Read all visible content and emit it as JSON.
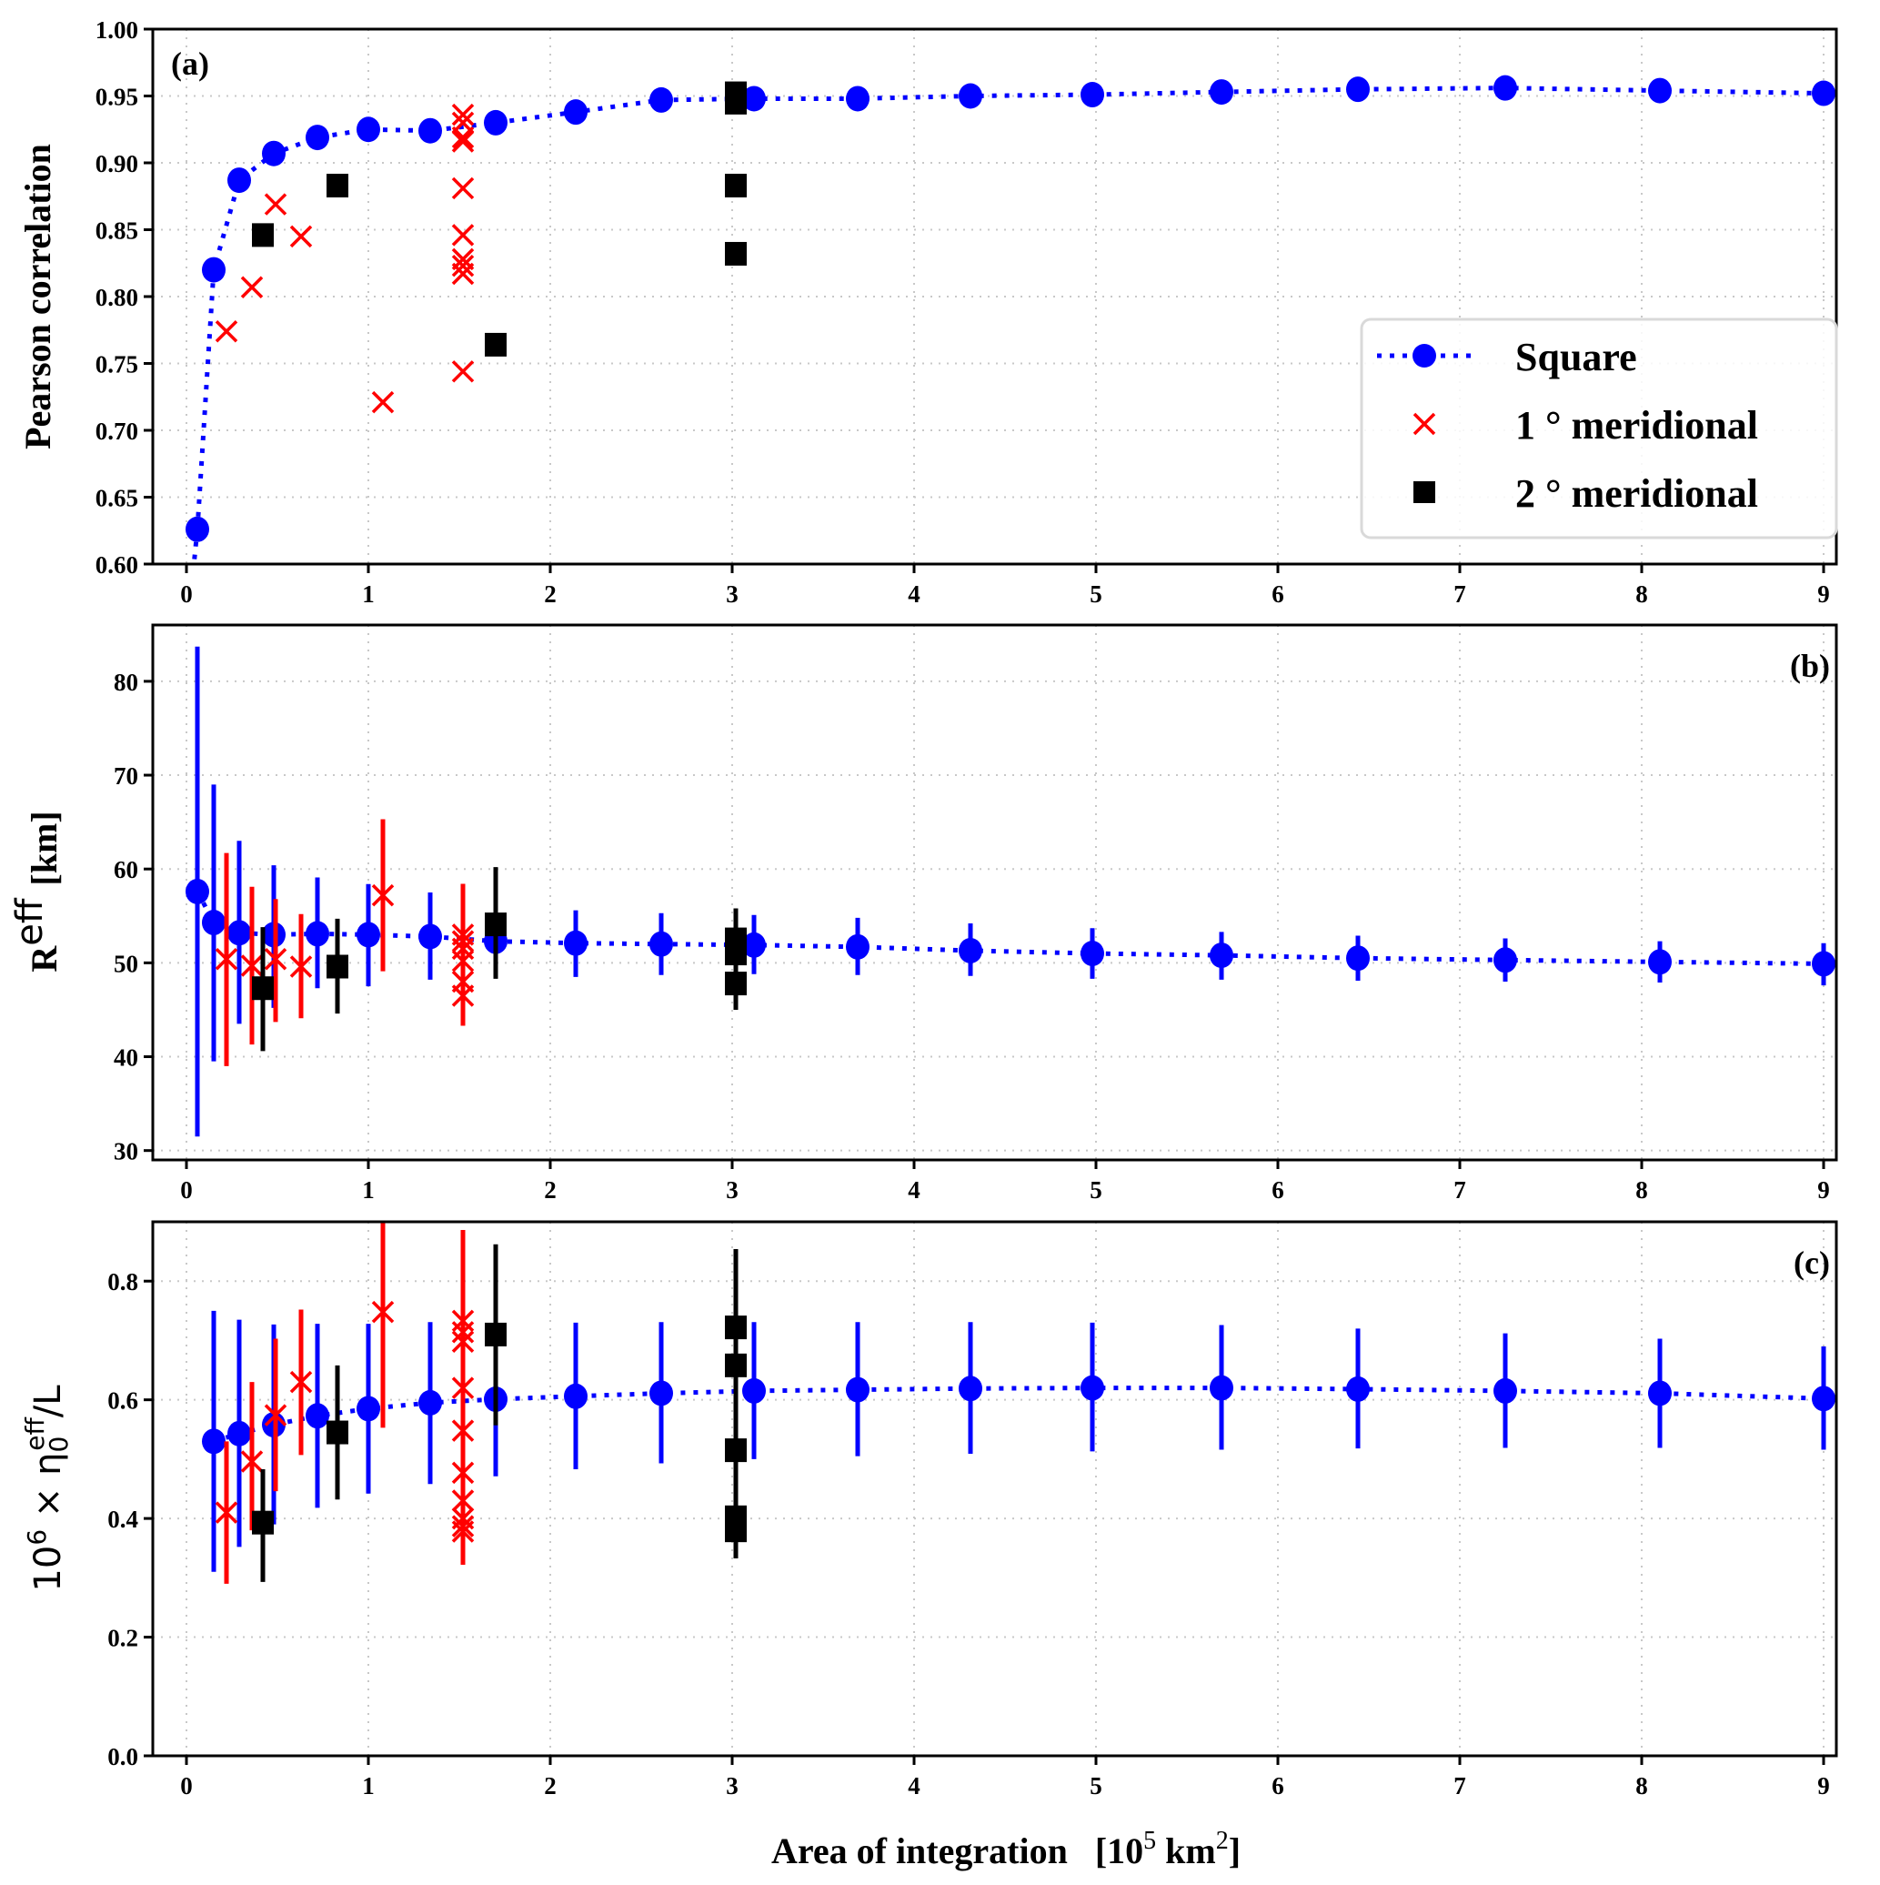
{
  "colors": {
    "square": "#0000ff",
    "meridional_1deg": "#ff0000",
    "meridional_2deg": "#000000",
    "grid": "#c8c8c8",
    "legend_border": "#d9d9d9"
  },
  "chart_data": [
    {
      "id": "a",
      "type": "scatter",
      "panel_label": "(a)",
      "title": "",
      "xlabel": "",
      "ylabel": "Pearson correlation",
      "xlim": [
        -0.2,
        9.1
      ],
      "ylim": [
        0.6,
        1.0
      ],
      "xticks": [
        0,
        1,
        2,
        3,
        4,
        5,
        6,
        7,
        8,
        9
      ],
      "yticks": [
        0.6,
        0.65,
        0.7,
        0.75,
        0.8,
        0.85,
        0.9,
        0.95,
        1.0
      ],
      "ytick_labels": [
        "0.60",
        "0.65",
        "0.70",
        "0.75",
        "0.80",
        "0.85",
        "0.90",
        "0.95",
        "1.00"
      ],
      "grid": true,
      "legend": {
        "placement": "center-right",
        "entries": [
          {
            "label": "Square",
            "marker": "circle",
            "line": "dotted",
            "series": "square"
          },
          {
            "label": "1 °  meridional",
            "marker": "x",
            "series": "meridional_1deg"
          },
          {
            "label": "2 °  meridional",
            "marker": "square",
            "series": "meridional_2deg"
          }
        ]
      },
      "series": [
        {
          "name": "Square",
          "key": "square",
          "marker": "circle",
          "line": "dotted",
          "x": [
            0.06,
            0.15,
            0.29,
            0.48,
            0.72,
            1.0,
            1.34,
            1.7,
            2.14,
            2.61,
            3.12,
            3.69,
            4.31,
            4.98,
            5.69,
            6.44,
            7.25,
            8.1,
            9.0
          ],
          "y": [
            0.626,
            0.82,
            0.887,
            0.907,
            0.919,
            0.925,
            0.924,
            0.93,
            0.938,
            0.947,
            0.948,
            0.948,
            0.95,
            0.951,
            0.953,
            0.955,
            0.956,
            0.954,
            0.952
          ]
        },
        {
          "name": "1 ° meridional",
          "key": "meridional_1deg",
          "marker": "x",
          "x": [
            0.22,
            0.36,
            0.49,
            0.63,
            1.08,
            1.52,
            1.52,
            1.52,
            1.52,
            1.52,
            1.52,
            1.52,
            1.52,
            1.52,
            1.52
          ],
          "y": [
            0.774,
            0.807,
            0.869,
            0.845,
            0.721,
            0.936,
            0.93,
            0.919,
            0.916,
            0.881,
            0.846,
            0.828,
            0.823,
            0.817,
            0.744
          ]
        },
        {
          "name": "2 ° meridional",
          "key": "meridional_2deg",
          "marker": "square",
          "x": [
            0.42,
            0.83,
            1.7,
            3.02,
            3.02,
            3.02,
            3.02
          ],
          "y": [
            0.846,
            0.883,
            0.764,
            0.952,
            0.945,
            0.883,
            0.832
          ]
        }
      ]
    },
    {
      "id": "b",
      "type": "scatter",
      "panel_label": "(b)",
      "title": "",
      "xlabel": "",
      "ylabel_main": "R",
      "ylabel_sup": "eff",
      "ylabel_unit": "[km]",
      "xlim": [
        -0.2,
        9.1
      ],
      "ylim": [
        29,
        86
      ],
      "xticks": [
        0,
        1,
        2,
        3,
        4,
        5,
        6,
        7,
        8,
        9
      ],
      "yticks": [
        30,
        40,
        50,
        60,
        70,
        80
      ],
      "ytick_labels": [
        "30",
        "40",
        "50",
        "60",
        "70",
        "80"
      ],
      "grid": true,
      "series": [
        {
          "name": "Square",
          "key": "square",
          "marker": "circle",
          "line": "dotted",
          "x": [
            0.06,
            0.15,
            0.29,
            0.48,
            0.72,
            1.0,
            1.34,
            1.7,
            2.14,
            2.61,
            3.12,
            3.69,
            4.31,
            4.98,
            5.69,
            6.44,
            7.25,
            8.1,
            9.0
          ],
          "y": [
            57.6,
            54.3,
            53.2,
            53.0,
            53.1,
            53.0,
            52.8,
            52.3,
            52.1,
            52.0,
            51.9,
            51.7,
            51.3,
            51.0,
            50.8,
            50.5,
            50.3,
            50.1,
            49.9
          ],
          "yerr_low": [
            31.5,
            39.5,
            43.5,
            45.2,
            47.3,
            47.5,
            48.2,
            48.7,
            48.5,
            48.7,
            48.8,
            48.7,
            48.6,
            48.3,
            48.2,
            48.1,
            48.0,
            47.9,
            47.6
          ],
          "yerr_high": [
            83.7,
            69.0,
            63.0,
            60.4,
            59.1,
            58.4,
            57.5,
            56.4,
            55.6,
            55.3,
            55.1,
            54.8,
            54.2,
            53.7,
            53.3,
            52.9,
            52.6,
            52.3,
            52.1
          ]
        },
        {
          "name": "1 ° meridional",
          "key": "meridional_1deg",
          "marker": "x",
          "x": [
            0.22,
            0.36,
            0.49,
            0.63,
            1.08,
            1.52,
            1.52,
            1.52,
            1.52,
            1.52,
            1.52
          ],
          "y": [
            50.4,
            49.7,
            50.4,
            49.6,
            57.2,
            53.0,
            52.3,
            51.5,
            50.2,
            48.0,
            46.5
          ],
          "yerr_low": [
            39.0,
            41.3,
            43.7,
            44.1,
            49.1,
            43.3,
            43.3,
            43.3,
            43.3,
            43.3,
            43.3
          ],
          "yerr_high": [
            61.7,
            58.1,
            56.8,
            55.2,
            65.3,
            58.4,
            58.4,
            58.4,
            58.4,
            58.4,
            58.4
          ]
        },
        {
          "name": "2 ° meridional",
          "key": "meridional_2deg",
          "marker": "square",
          "x": [
            0.42,
            0.83,
            1.7,
            3.02,
            3.02,
            3.02
          ],
          "y": [
            47.3,
            49.6,
            54.1,
            52.5,
            51.0,
            47.8
          ],
          "yerr_low": [
            40.6,
            44.6,
            48.3,
            45.0,
            45.0,
            45.0
          ],
          "yerr_high": [
            53.8,
            54.7,
            60.2,
            55.8,
            55.8,
            55.8
          ]
        }
      ]
    },
    {
      "id": "c",
      "type": "scatter",
      "panel_label": "(c)",
      "title": "",
      "xlabel_main": "Area of integration   [10",
      "xlabel_sup1": "5",
      "xlabel_mid": " km",
      "xlabel_sup2": "2",
      "xlabel_end": "]",
      "ylabel_pre": "10",
      "ylabel_pre_sup": "6",
      "ylabel_mid": " × η",
      "ylabel_sub": "0",
      "ylabel_sup": "eff",
      "ylabel_end": "/L",
      "xlim": [
        -0.2,
        9.1
      ],
      "ylim": [
        0.0,
        0.9
      ],
      "xticks": [
        0,
        1,
        2,
        3,
        4,
        5,
        6,
        7,
        8,
        9
      ],
      "xtick_labels": [
        "0",
        "1",
        "2",
        "3",
        "4",
        "5",
        "6",
        "7",
        "8",
        "9"
      ],
      "yticks": [
        0.0,
        0.2,
        0.4,
        0.6,
        0.8
      ],
      "ytick_labels": [
        "0.0",
        "0.2",
        "0.4",
        "0.6",
        "0.8"
      ],
      "grid": true,
      "series": [
        {
          "name": "Square",
          "key": "square",
          "marker": "circle",
          "line": "dotted",
          "x": [
            0.15,
            0.29,
            0.48,
            0.72,
            1.0,
            1.34,
            1.7,
            2.14,
            2.61,
            3.12,
            3.69,
            4.31,
            4.98,
            5.69,
            6.44,
            7.25,
            8.1,
            9.0
          ],
          "y": [
            0.53,
            0.543,
            0.558,
            0.573,
            0.585,
            0.595,
            0.601,
            0.606,
            0.611,
            0.615,
            0.617,
            0.619,
            0.62,
            0.62,
            0.618,
            0.615,
            0.611,
            0.602
          ],
          "yerr_low": [
            0.31,
            0.352,
            0.39,
            0.418,
            0.442,
            0.458,
            0.471,
            0.483,
            0.493,
            0.5,
            0.505,
            0.509,
            0.513,
            0.516,
            0.518,
            0.519,
            0.519,
            0.516
          ],
          "yerr_high": [
            0.75,
            0.735,
            0.727,
            0.728,
            0.728,
            0.731,
            0.731,
            0.73,
            0.731,
            0.731,
            0.731,
            0.731,
            0.73,
            0.726,
            0.72,
            0.712,
            0.703,
            0.69
          ]
        },
        {
          "name": "1 ° meridional",
          "key": "meridional_1deg",
          "marker": "x",
          "x": [
            0.22,
            0.36,
            0.49,
            0.63,
            1.08,
            1.52,
            1.52,
            1.52,
            1.52,
            1.52,
            1.52,
            1.52,
            1.52,
            1.52,
            1.52
          ],
          "y": [
            0.41,
            0.496,
            0.574,
            0.63,
            0.748,
            0.733,
            0.714,
            0.698,
            0.62,
            0.548,
            0.477,
            0.43,
            0.4,
            0.387,
            0.378
          ],
          "yerr_low": [
            0.29,
            0.38,
            0.446,
            0.507,
            0.553,
            0.322,
            0.322,
            0.322,
            0.322,
            0.322,
            0.322,
            0.322,
            0.322,
            0.322,
            0.322
          ],
          "yerr_high": [
            0.53,
            0.63,
            0.703,
            0.752,
            0.905,
            0.886,
            0.886,
            0.886,
            0.886,
            0.886,
            0.886,
            0.886,
            0.886,
            0.886,
            0.886
          ]
        },
        {
          "name": "2 ° meridional",
          "key": "meridional_2deg",
          "marker": "square",
          "x": [
            0.42,
            0.83,
            1.7,
            3.02,
            3.02,
            3.02,
            3.02,
            3.02
          ],
          "y": [
            0.393,
            0.545,
            0.71,
            0.722,
            0.658,
            0.515,
            0.402,
            0.38
          ],
          "yerr_low": [
            0.293,
            0.432,
            0.557,
            0.333,
            0.333,
            0.333,
            0.333,
            0.333
          ],
          "yerr_high": [
            0.483,
            0.658,
            0.862,
            0.854,
            0.854,
            0.854,
            0.854,
            0.854
          ]
        }
      ]
    }
  ]
}
